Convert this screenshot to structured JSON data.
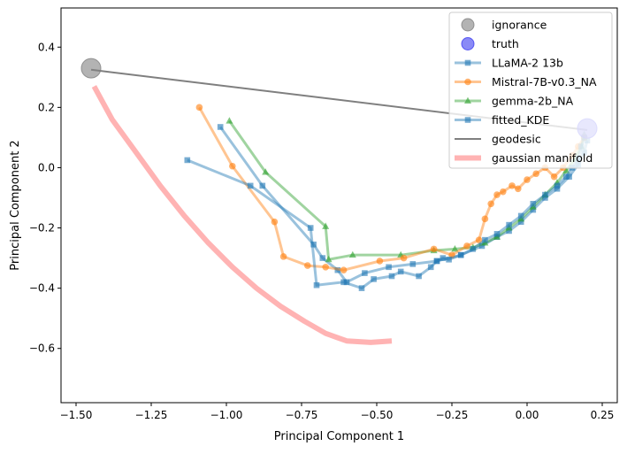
{
  "chart_data": {
    "type": "line",
    "title": "",
    "xlabel": "Principal Component 1",
    "ylabel": "Principal Component 2",
    "xlim": [
      -1.55,
      0.3
    ],
    "ylim": [
      -0.78,
      0.53
    ],
    "xticks": [
      -1.5,
      -1.25,
      -1.0,
      -0.75,
      -0.5,
      -0.25,
      0.0,
      0.25
    ],
    "xtick_labels": [
      "−1.50",
      "−1.25",
      "−1.00",
      "−0.75",
      "−0.50",
      "−0.25",
      "0.00",
      "0.25"
    ],
    "yticks": [
      -0.6,
      -0.4,
      -0.2,
      0.0,
      0.2,
      0.4
    ],
    "ytick_labels": [
      "−0.6",
      "−0.4",
      "−0.2",
      "0.0",
      "0.2",
      "0.4"
    ],
    "grid": false,
    "legend_position": "top-right",
    "points": [
      {
        "name": "ignorance",
        "x": -1.45,
        "y": 0.33,
        "color": "#808080"
      },
      {
        "name": "truth",
        "x": 0.2,
        "y": 0.13,
        "color": "#3c3cf0"
      }
    ],
    "series": [
      {
        "name": "LLaMA-2 13b",
        "color": "#1f77b4",
        "marker": "square",
        "x": [
          -1.13,
          -0.92,
          -0.72,
          -0.7,
          -0.61,
          -0.55,
          -0.51,
          -0.45,
          -0.42,
          -0.36,
          -0.32,
          -0.3,
          -0.28,
          -0.26,
          -0.22,
          -0.18,
          -0.14,
          -0.1,
          -0.06,
          -0.02,
          0.02,
          0.06,
          0.1,
          0.13,
          0.15,
          0.17,
          0.18,
          0.19
        ],
        "y": [
          0.025,
          -0.06,
          -0.2,
          -0.39,
          -0.38,
          -0.4,
          -0.37,
          -0.36,
          -0.345,
          -0.36,
          -0.33,
          -0.31,
          -0.3,
          -0.305,
          -0.29,
          -0.27,
          -0.24,
          -0.22,
          -0.19,
          -0.16,
          -0.12,
          -0.09,
          -0.06,
          -0.03,
          0.0,
          0.03,
          0.07,
          0.1
        ]
      },
      {
        "name": "Mistral-7B-v0.3_NA",
        "color": "#ff7f0e",
        "marker": "circle",
        "x": [
          -1.09,
          -0.98,
          -0.84,
          -0.81,
          -0.73,
          -0.67,
          -0.61,
          -0.49,
          -0.41,
          -0.31,
          -0.25,
          -0.2,
          -0.16,
          -0.14,
          -0.12,
          -0.1,
          -0.08,
          -0.05,
          -0.03,
          0.0,
          0.03,
          0.06,
          0.09,
          0.12,
          0.15,
          0.17,
          0.19
        ],
        "y": [
          0.2,
          0.005,
          -0.18,
          -0.295,
          -0.325,
          -0.33,
          -0.34,
          -0.31,
          -0.3,
          -0.27,
          -0.29,
          -0.26,
          -0.24,
          -0.17,
          -0.12,
          -0.09,
          -0.08,
          -0.06,
          -0.07,
          -0.04,
          -0.02,
          0.0,
          -0.03,
          0.0,
          0.04,
          0.07,
          0.1
        ]
      },
      {
        "name": "gemma-2b_NA",
        "color": "#2ca02c",
        "marker": "triangle",
        "x": [
          -0.99,
          -0.87,
          -0.67,
          -0.66,
          -0.58,
          -0.42,
          -0.31,
          -0.24,
          -0.18,
          -0.14,
          -0.1,
          -0.06,
          -0.02,
          0.02,
          0.06,
          0.1,
          0.13,
          0.16,
          0.18,
          0.19
        ],
        "y": [
          0.155,
          -0.015,
          -0.195,
          -0.305,
          -0.29,
          -0.29,
          -0.275,
          -0.27,
          -0.265,
          -0.25,
          -0.23,
          -0.2,
          -0.17,
          -0.13,
          -0.09,
          -0.05,
          -0.01,
          0.03,
          0.07,
          0.11
        ]
      },
      {
        "name": "fitted_KDE",
        "color": "#1f77b4",
        "marker": "square",
        "x": [
          -1.02,
          -0.88,
          -0.71,
          -0.68,
          -0.63,
          -0.6,
          -0.54,
          -0.46,
          -0.38,
          -0.3,
          -0.22,
          -0.15,
          -0.1,
          -0.06,
          -0.02,
          0.02,
          0.06,
          0.1,
          0.14,
          0.17,
          0.19,
          0.2
        ],
        "y": [
          0.135,
          -0.06,
          -0.255,
          -0.3,
          -0.34,
          -0.38,
          -0.35,
          -0.33,
          -0.32,
          -0.31,
          -0.29,
          -0.26,
          -0.23,
          -0.21,
          -0.18,
          -0.14,
          -0.1,
          -0.07,
          -0.03,
          0.01,
          0.05,
          0.09
        ]
      },
      {
        "name": "geodesic",
        "color": "#7f7f7f",
        "marker": "none",
        "x": [
          -1.45,
          0.2
        ],
        "y": [
          0.325,
          0.125
        ]
      },
      {
        "name": "gaussian manifold",
        "color": "#ff9999",
        "marker": "none",
        "x": [
          -1.44,
          -1.38,
          -1.3,
          -1.22,
          -1.14,
          -1.06,
          -0.98,
          -0.9,
          -0.82,
          -0.74,
          -0.67,
          -0.6,
          -0.52,
          -0.45
        ],
        "y": [
          0.27,
          0.16,
          0.05,
          -0.06,
          -0.16,
          -0.25,
          -0.33,
          -0.4,
          -0.46,
          -0.51,
          -0.55,
          -0.575,
          -0.58,
          -0.575
        ]
      }
    ]
  }
}
